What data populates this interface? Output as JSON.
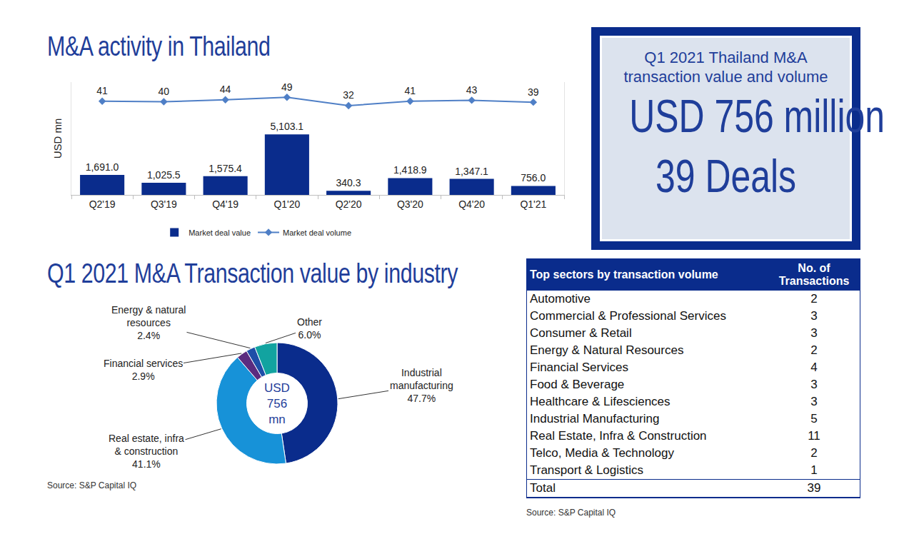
{
  "chart_data": [
    {
      "type": "bar",
      "title": "M&A activity in Thailand",
      "y_label": "USD mn",
      "categories": [
        "Q2'19",
        "Q3'19",
        "Q4'19",
        "Q1'20",
        "Q2'20",
        "Q3'20",
        "Q4'20",
        "Q1'21"
      ],
      "series": [
        {
          "name": "Market deal value",
          "type": "bar",
          "color": "#0a2c8c",
          "values": [
            1691.0,
            1025.5,
            1575.4,
            5103.1,
            340.3,
            1418.9,
            1347.1,
            756.0
          ],
          "value_labels": [
            "1,691.0",
            "1,025.5",
            "1,575.4",
            "5,103.1",
            "340.3",
            "1,418.9",
            "1,347.1",
            "756.0"
          ]
        },
        {
          "name": "Market deal volume",
          "type": "line",
          "color": "#4f7fc6",
          "marker": "diamond",
          "axis": "y2",
          "values": [
            41,
            40,
            44,
            49,
            32,
            41,
            43,
            39
          ]
        }
      ],
      "ylim": [
        0,
        9500
      ],
      "yticks": [],
      "y2lim": [
        -150,
        80
      ],
      "y2ticks": [],
      "data_labels": true,
      "tick_labels": "x",
      "grid": false,
      "legend": "bottom"
    },
    {
      "type": "pie",
      "title": "Q1 2021 M&A Transaction value by industry",
      "center_text": "USD 756 mn",
      "categories": [
        "Industrial manufacturing",
        "Real estate, infra & construction",
        "Financial services",
        "Energy & natural resources",
        "Other"
      ],
      "values": [
        47.7,
        41.1,
        2.9,
        2.4,
        6.0
      ],
      "value_labels": [
        "47.7%",
        "41.1%",
        "2.9%",
        "2.4%",
        "6.0%"
      ],
      "colors": [
        "#0a2c8c",
        "#1792d8",
        "#5b2b7f",
        "#1f4fa8",
        "#12a3a0"
      ],
      "data_labels": true,
      "source": "Source: S&P Capital IQ"
    }
  ],
  "highlight": {
    "title": "Q1 2021 Thailand M&A transaction value and volume",
    "value": "USD 756 million",
    "deals": "39 Deals"
  },
  "table": {
    "header": [
      "Top sectors by transaction volume",
      "No. of Transactions"
    ],
    "rows": [
      [
        "Automotive",
        2
      ],
      [
        "Commercial & Professional Services",
        3
      ],
      [
        "Consumer & Retail",
        3
      ],
      [
        "Energy & Natural Resources",
        2
      ],
      [
        "Financial Services",
        4
      ],
      [
        "Food & Beverage",
        3
      ],
      [
        "Healthcare & Lifesciences",
        3
      ],
      [
        "Industrial Manufacturing",
        5
      ],
      [
        "Real Estate, Infra & Construction",
        11
      ],
      [
        "Telco, Media & Technology",
        2
      ],
      [
        "Transport & Logistics",
        1
      ]
    ],
    "total": [
      "Total",
      39
    ],
    "source": "Source: S&P Capital IQ"
  }
}
